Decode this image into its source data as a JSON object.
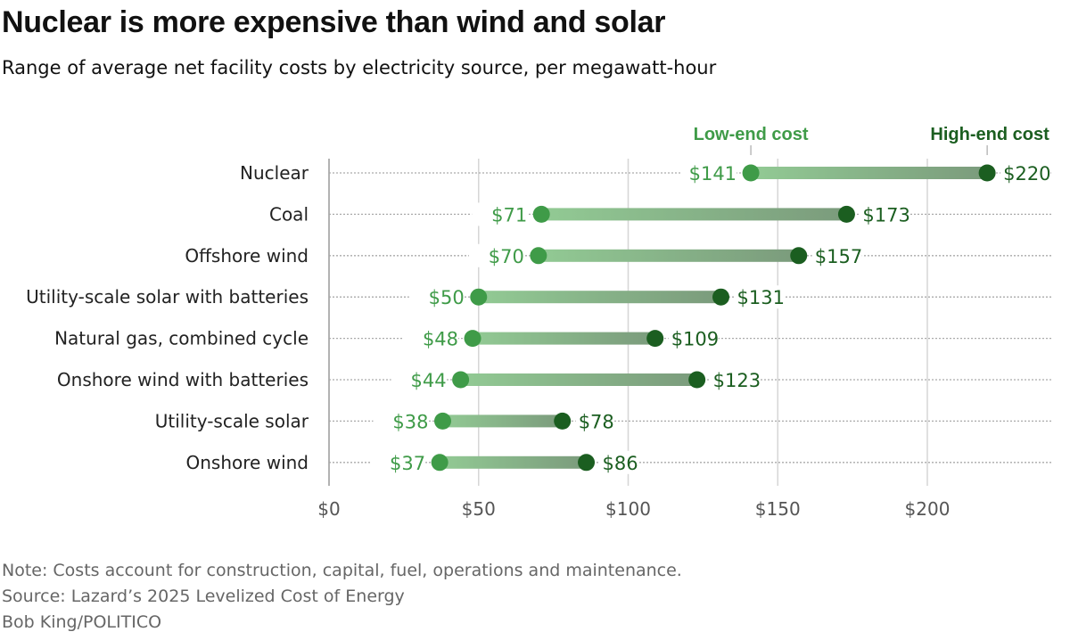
{
  "chart_data": {
    "type": "dumbbell",
    "title": "Nuclear is more expensive than wind and solar",
    "subtitle": "Range of average net facility costs by electricity source, per megawatt-hour",
    "categories": [
      "Nuclear",
      "Coal",
      "Offshore wind",
      "Utility-scale solar with batteries",
      "Natural gas, combined cycle",
      "Onshore wind with batteries",
      "Utility-scale solar",
      "Onshore wind"
    ],
    "series": [
      {
        "name": "Low-end cost",
        "values": [
          141,
          71,
          70,
          50,
          48,
          44,
          38,
          37
        ],
        "labels": [
          "$141",
          "$71",
          "$70",
          "$50",
          "$48",
          "$44",
          "$38",
          "$37"
        ],
        "color": "#3f9b48"
      },
      {
        "name": "High-end cost",
        "values": [
          220,
          173,
          157,
          131,
          109,
          123,
          78,
          86
        ],
        "labels": [
          "$220",
          "$173",
          "$157",
          "$131",
          "$109",
          "$123",
          "$78",
          "$86"
        ],
        "color": "#1b5e20"
      }
    ],
    "xlim": [
      0,
      240
    ],
    "xticks": [
      0,
      50,
      100,
      150,
      200
    ],
    "xtick_labels": [
      "$0",
      "$50",
      "$100",
      "$150",
      "$200"
    ],
    "grid": true,
    "legend": "top, labels above first row"
  },
  "notes": {
    "note": "Note: Costs account for construction, capital, fuel, operations and maintenance.",
    "source": "Source: Lazard’s 2025 Levelized Cost of Energy",
    "credit": "Bob King/POLITICO"
  }
}
